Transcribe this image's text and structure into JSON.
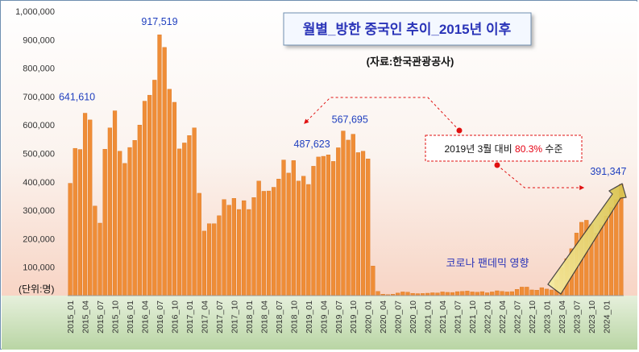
{
  "chart_data": {
    "type": "bar",
    "title": "월별_방한 중국인 추이_2015년 이후",
    "source": "(자료:한국관광공사)",
    "unit_label": "(단위:명)",
    "ylim": [
      0,
      1000000
    ],
    "yticks": [
      {
        "value": 100000,
        "label": "100,000"
      },
      {
        "value": 200000,
        "label": "200,000"
      },
      {
        "value": 300000,
        "label": "300,000"
      },
      {
        "value": 400000,
        "label": "400,000"
      },
      {
        "value": 500000,
        "label": "500,000"
      },
      {
        "value": 600000,
        "label": "600,000"
      },
      {
        "value": 700000,
        "label": "700,000"
      },
      {
        "value": 800000,
        "label": "800,000"
      },
      {
        "value": 900000,
        "label": "900,000"
      },
      {
        "value": 1000000,
        "label": "1,000,000"
      }
    ],
    "start": {
      "year": 2015,
      "month": 1
    },
    "tick_labels": [
      "2015_01",
      "2015_04",
      "2015_07",
      "2015_10",
      "2016_01",
      "2016_04",
      "2016_07",
      "2016_10",
      "2017_01",
      "2017_04",
      "2017_07",
      "2017_10",
      "2018_01",
      "2018_04",
      "2018_07",
      "2018_10",
      "2019_01",
      "2019_04",
      "2019_07",
      "2019_10",
      "2020_01",
      "2020_04",
      "2020_07",
      "2020_10",
      "2021_01",
      "2021_04",
      "2021_07",
      "2021_10",
      "2022_01",
      "2022_04",
      "2022_07",
      "2022_10",
      "2023_01",
      "2023_04",
      "2023_07",
      "2023_10",
      "2024_01"
    ],
    "values": [
      395000,
      518000,
      514000,
      641610,
      618000,
      315000,
      255000,
      515000,
      590000,
      650000,
      508000,
      465000,
      521000,
      546000,
      600000,
      684000,
      705000,
      758000,
      917519,
      873000,
      726000,
      680000,
      516000,
      537000,
      563000,
      590000,
      360000,
      227000,
      253000,
      253000,
      281000,
      338000,
      318000,
      342000,
      303000,
      334000,
      303000,
      345000,
      403000,
      367000,
      368000,
      381000,
      410000,
      477000,
      431000,
      475000,
      403000,
      420000,
      391000,
      455000,
      487623,
      490000,
      495000,
      472000,
      520000,
      579000,
      547000,
      567695,
      503000,
      508000,
      481000,
      104000,
      15000,
      5000,
      3500,
      5000,
      9000,
      13000,
      12000,
      8000,
      7000,
      7500,
      8500,
      10000,
      9500,
      13000,
      11500,
      11000,
      14000,
      15000,
      16000,
      13000,
      12000,
      14000,
      10000,
      13000,
      17000,
      15000,
      13000,
      14000,
      22000,
      30000,
      30000,
      20000,
      19000,
      28000,
      23000,
      20000,
      55000,
      98000,
      130000,
      165000,
      220000,
      258000,
      265000,
      250000,
      220000,
      248000,
      280000,
      310000,
      338000,
      391347
    ],
    "data_labels": [
      {
        "index": 3,
        "text": "641,610"
      },
      {
        "index": 18,
        "text": "917,519"
      },
      {
        "index": 50,
        "text": "487,623"
      },
      {
        "index": 57,
        "text": "567,695"
      },
      {
        "index": 111,
        "text": "391,347"
      }
    ],
    "annotations": {
      "comparison_prefix": "2019년 3뤌 대비 ",
      "comparison_percent": "80.3%",
      "comparison_suffix": " 수준",
      "pandemic": "코로나 팬데믹 영향"
    }
  },
  "colors": {
    "bar": "#ef8d37",
    "bar_edge": "#d9731c",
    "label": "#1f3fbf",
    "percent": "#e60012",
    "dashed_arrow": "#e01010",
    "trend_arrow": "#f0e07a"
  }
}
